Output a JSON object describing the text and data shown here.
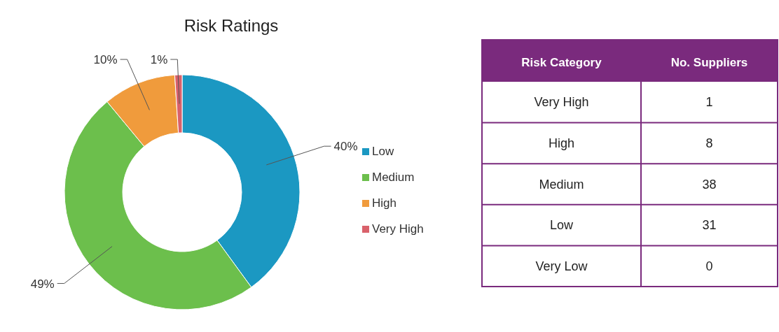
{
  "chart_data": [
    {
      "type": "donut",
      "title": "Risk Ratings",
      "categories": [
        "Low",
        "Medium",
        "High",
        "Very High"
      ],
      "values": [
        40,
        49,
        10,
        1
      ],
      "colors": [
        "#1b98c2",
        "#6cbf4c",
        "#f09b3c",
        "#d9616b"
      ],
      "value_labels": [
        "40%",
        "49%",
        "10%",
        "1%"
      ],
      "legend": "right"
    },
    {
      "type": "other",
      "xlabel": "Risk Category",
      "ylabel": "No. Suppliers",
      "categories": [
        "Very High",
        "High",
        "Medium",
        "Low",
        "Very Low"
      ],
      "values": [
        1,
        8,
        38,
        31,
        0
      ],
      "data_labels": true
    }
  ]
}
